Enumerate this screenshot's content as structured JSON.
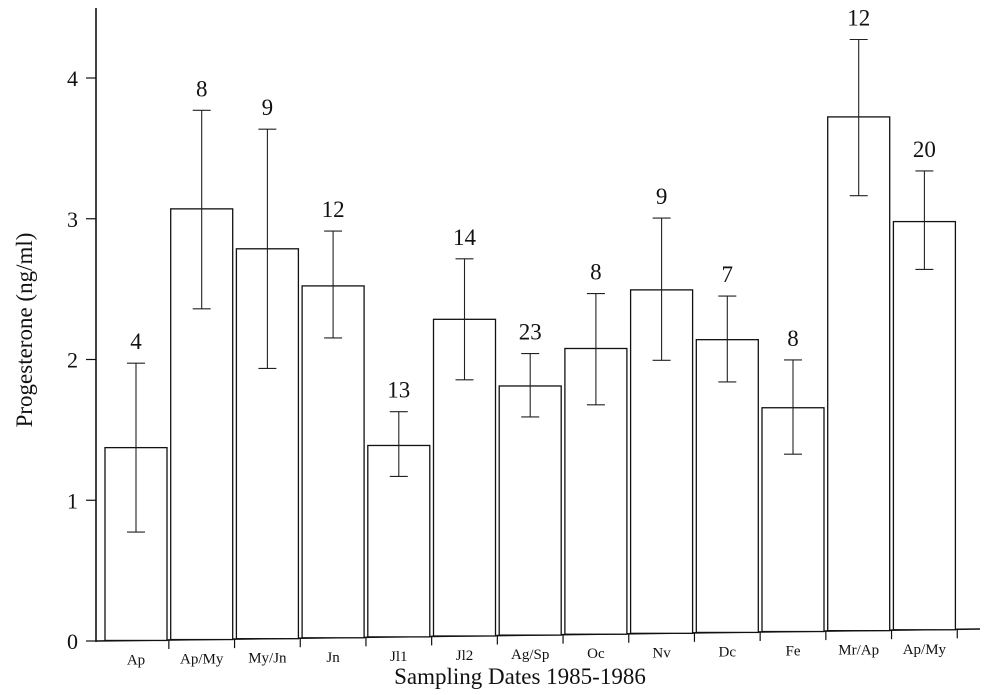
{
  "chart_data": {
    "type": "bar",
    "title": "",
    "xlabel": "Sampling Dates 1985-1986",
    "ylabel": "Progesterone (ng/ml)",
    "ylim": [
      0,
      4.5
    ],
    "yticks": [
      "0",
      "1",
      "2",
      "3",
      "4"
    ],
    "grid": false,
    "categories": [
      "Ap",
      "Ap/My",
      "My/Jn",
      "Jn",
      "Jl1",
      "Jl2",
      "Ag/Sp",
      "Oc",
      "Nv",
      "Dc",
      "Fe",
      "Mr/Ap",
      "Ap/My"
    ],
    "values": [
      1.37,
      3.06,
      2.77,
      2.5,
      1.36,
      2.25,
      1.77,
      2.03,
      2.44,
      2.08,
      1.59,
      3.65,
      2.9
    ],
    "error_low": [
      0.77,
      2.35,
      1.92,
      2.13,
      1.14,
      1.82,
      1.55,
      1.63,
      1.94,
      1.78,
      1.26,
      3.09,
      2.56
    ],
    "error_high": [
      1.97,
      3.76,
      3.62,
      2.89,
      1.6,
      2.68,
      2.0,
      2.42,
      2.95,
      2.39,
      1.93,
      4.2,
      3.26
    ],
    "sample_sizes": [
      "4",
      "8",
      "9",
      "12",
      "13",
      "14",
      "23",
      "8",
      "9",
      "7",
      "8",
      "12",
      "20"
    ]
  }
}
